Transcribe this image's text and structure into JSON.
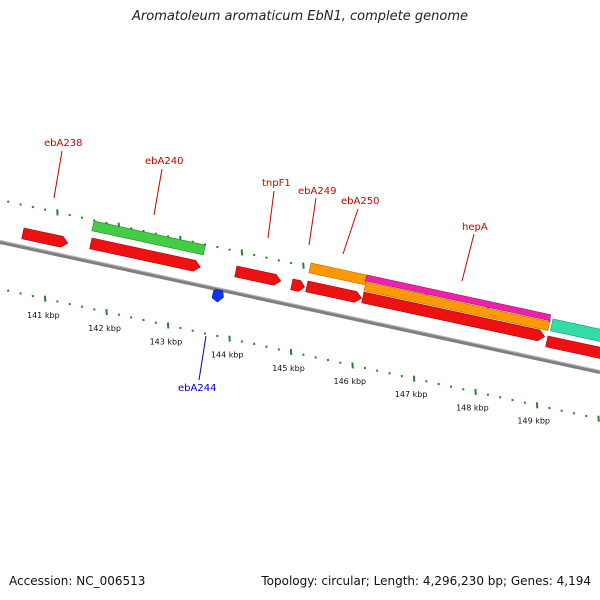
{
  "title": "Aromatoleum aromaticum EbN1, complete genome",
  "footer": {
    "accession": "Accession: NC_006513",
    "summary": "Topology: circular; Length: 4,296,230 bp; Genes: 4,194"
  },
  "colors": {
    "backbone": "#7f7f7f",
    "tick": "#2e7d32",
    "label_red": "#cc0000",
    "label_blue": "#0000cc",
    "gene_red": "#ee1111",
    "gene_green": "#44cc44",
    "gene_orange": "#ff9900",
    "gene_pink": "#ee22aa",
    "gene_teal": "#33ddaa",
    "gene_blue": "#1133ee"
  },
  "scale_labels": [
    "141 kbp",
    "142 kbp",
    "143 kbp",
    "144 kbp",
    "145 kbp",
    "146 kbp",
    "147 kbp",
    "148 kbp",
    "149 kbp"
  ],
  "gene_labels": {
    "ebA238": "ebA238",
    "ebA240": "ebA240",
    "tnpF1": "tnpF1",
    "ebA249": "ebA249",
    "ebA250": "ebA250",
    "hepA": "hepA",
    "ebA244": "ebA244"
  }
}
